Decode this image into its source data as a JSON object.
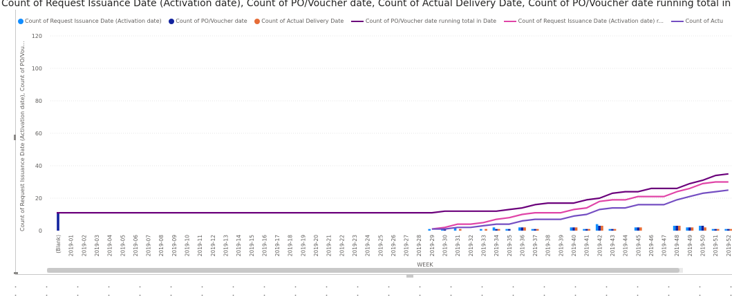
{
  "chart_data": {
    "type": "bar",
    "title": "Count of Request Issuance Date (Activation date), Count of PO/Voucher date, Count of Actual Delivery Date, Count of PO/Voucher date running total in",
    "xlabel": "WEEK",
    "ylabel": "Count of Request Issuance Date (Activation date), Count of PO/Vou...",
    "ylim": [
      0,
      120
    ],
    "yticks": [
      0,
      20,
      40,
      60,
      80,
      100,
      120
    ],
    "grid": true,
    "legend_position": "top",
    "categories": [
      "(Blank)",
      "2019-01",
      "2019-02",
      "2019-03",
      "2019-04",
      "2019-05",
      "2019-06",
      "2019-07",
      "2019-08",
      "2019-09",
      "2019-10",
      "2019-11",
      "2019-12",
      "2019-13",
      "2019-14",
      "2019-15",
      "2019-16",
      "2019-17",
      "2019-18",
      "2019-19",
      "2019-20",
      "2019-21",
      "2019-22",
      "2019-23",
      "2019-24",
      "2019-25",
      "2019-26",
      "2019-27",
      "2019-28",
      "2019-29",
      "2019-30",
      "2019-31",
      "2019-32",
      "2019-33",
      "2019-34",
      "2019-35",
      "2019-36",
      "2019-37",
      "2019-38",
      "2019-39",
      "2019-40",
      "2019-41",
      "2019-42",
      "2019-43",
      "2019-44",
      "2019-45",
      "2019-46",
      "2019-47",
      "2019-48",
      "2019-49",
      "2019-50",
      "2019-51",
      "2019-52"
    ],
    "bar_series": [
      {
        "name": "Count of Request Issuance Date (Activation date)",
        "color": "#118dff",
        "values": [
          0,
          0,
          0,
          0,
          0,
          0,
          0,
          0,
          0,
          0,
          0,
          0,
          0,
          0,
          0,
          0,
          0,
          0,
          0,
          0,
          0,
          0,
          0,
          0,
          0,
          0,
          0,
          0,
          0,
          1,
          1,
          2,
          0,
          1,
          2,
          1,
          2,
          1,
          0,
          0,
          2,
          1,
          4,
          1,
          0,
          2,
          0,
          0,
          3,
          2,
          3,
          1,
          1
        ]
      },
      {
        "name": "Count of PO/Voucher date",
        "color": "#12239e",
        "values": [
          11,
          0,
          0,
          0,
          0,
          0,
          0,
          0,
          0,
          0,
          0,
          0,
          0,
          0,
          0,
          0,
          0,
          0,
          0,
          0,
          0,
          0,
          0,
          0,
          0,
          0,
          0,
          0,
          0,
          0,
          1,
          0,
          0,
          0,
          1,
          1,
          2,
          1,
          0,
          0,
          2,
          1,
          3,
          1,
          0,
          2,
          0,
          0,
          3,
          2,
          3,
          1,
          1
        ]
      },
      {
        "name": "Count of Actual Delivery Date",
        "color": "#e66c37",
        "values": [
          0,
          0,
          0,
          0,
          0,
          0,
          0,
          0,
          0,
          0,
          0,
          0,
          0,
          0,
          0,
          0,
          0,
          0,
          0,
          0,
          0,
          0,
          0,
          0,
          0,
          0,
          0,
          0,
          0,
          0,
          0,
          1,
          0,
          1,
          1,
          0,
          2,
          1,
          0,
          0,
          2,
          1,
          3,
          1,
          0,
          2,
          0,
          0,
          3,
          2,
          2,
          1,
          1
        ]
      }
    ],
    "line_series": [
      {
        "name": "Count of PO/Voucher date running total in Date",
        "color": "#6b007b",
        "values": [
          11,
          11,
          11,
          11,
          11,
          11,
          11,
          11,
          11,
          11,
          11,
          11,
          11,
          11,
          11,
          11,
          11,
          11,
          11,
          11,
          11,
          11,
          11,
          11,
          11,
          11,
          11,
          11,
          11,
          11,
          12,
          12,
          12,
          12,
          12,
          13,
          14,
          16,
          17,
          17,
          17,
          19,
          20,
          23,
          24,
          24,
          26,
          26,
          26,
          29,
          31,
          34,
          35
        ]
      },
      {
        "name": "Count of Request Issuance Date (Activation date) r...",
        "color": "#e044a7",
        "values": [
          null,
          null,
          null,
          null,
          null,
          null,
          null,
          null,
          null,
          null,
          null,
          null,
          null,
          null,
          null,
          null,
          null,
          null,
          null,
          null,
          null,
          null,
          null,
          null,
          null,
          null,
          null,
          null,
          null,
          1,
          2,
          4,
          4,
          5,
          7,
          8,
          10,
          11,
          11,
          11,
          13,
          14,
          18,
          19,
          19,
          21,
          21,
          21,
          24,
          26,
          29,
          30,
          30
        ]
      },
      {
        "name": "Count of Actual Delivery Date running total in Date",
        "color": "#744ec2",
        "values": [
          null,
          null,
          null,
          null,
          null,
          null,
          null,
          null,
          null,
          null,
          null,
          null,
          null,
          null,
          null,
          null,
          null,
          null,
          null,
          null,
          null,
          null,
          null,
          null,
          null,
          null,
          null,
          null,
          null,
          1,
          1,
          2,
          2,
          3,
          4,
          4,
          6,
          7,
          7,
          7,
          9,
          10,
          13,
          14,
          14,
          16,
          16,
          16,
          19,
          21,
          23,
          24,
          25
        ]
      }
    ],
    "legend_labels": [
      "Count of Request Issuance Date (Activation date)",
      "Count of PO/Voucher date",
      "Count of Actual Delivery Date",
      "Count of PO/Voucher date running total in Date",
      "Count of Request Issuance Date (Activation date) r...",
      "Count of Actu"
    ]
  }
}
